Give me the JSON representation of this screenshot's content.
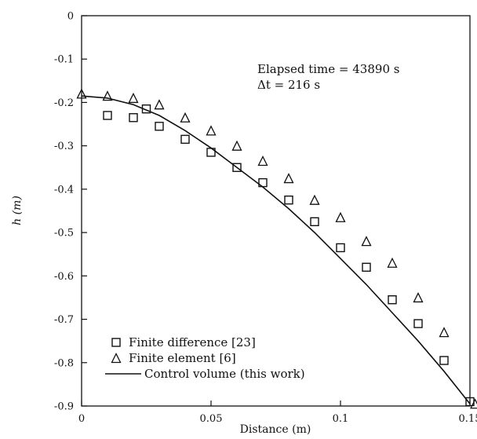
{
  "chart_data": {
    "type": "scatter",
    "xlabel": "Distance (m)",
    "ylabel": "h (m)",
    "xlim": [
      0,
      0.15
    ],
    "ylim": [
      -0.9,
      0
    ],
    "x_ticks": [
      0,
      0.05,
      0.1,
      0.15
    ],
    "x_tick_labels": [
      "0",
      "0.05",
      "0.1",
      "0.15"
    ],
    "y_ticks": [
      0,
      -0.1,
      -0.2,
      -0.3,
      -0.4,
      -0.5,
      -0.6,
      -0.7,
      -0.8,
      -0.9
    ],
    "y_tick_labels": [
      "0",
      "-0.1",
      "-0.2",
      "-0.3",
      "-0.4",
      "-0.5",
      "-0.6",
      "-0.7",
      "-0.8",
      "-0.9"
    ],
    "annotations": [
      "Elapsed time = 43890 s",
      "Δt = 216 s"
    ],
    "legend_position": "bottom-left",
    "grid": false,
    "series": [
      {
        "name": "Finite difference [23]",
        "marker": "square",
        "x": [
          0.01,
          0.02,
          0.025,
          0.03,
          0.04,
          0.05,
          0.06,
          0.07,
          0.08,
          0.09,
          0.1,
          0.11,
          0.12,
          0.13,
          0.14,
          0.15
        ],
        "y": [
          -0.23,
          -0.235,
          -0.215,
          -0.255,
          -0.285,
          -0.315,
          -0.35,
          -0.385,
          -0.425,
          -0.475,
          -0.535,
          -0.58,
          -0.655,
          -0.71,
          -0.795,
          -0.89
        ]
      },
      {
        "name": "Finite element [6]",
        "marker": "triangle",
        "x": [
          0,
          0.01,
          0.02,
          0.03,
          0.04,
          0.05,
          0.06,
          0.07,
          0.08,
          0.09,
          0.1,
          0.11,
          0.12,
          0.13,
          0.14,
          0.152
        ],
        "y": [
          -0.18,
          -0.185,
          -0.19,
          -0.205,
          -0.235,
          -0.265,
          -0.3,
          -0.335,
          -0.375,
          -0.425,
          -0.465,
          -0.52,
          -0.57,
          -0.65,
          -0.73,
          -0.895
        ]
      },
      {
        "name": "Control volume (this work)",
        "marker": "line",
        "x": [
          0,
          0.01,
          0.02,
          0.03,
          0.04,
          0.05,
          0.06,
          0.07,
          0.08,
          0.09,
          0.1,
          0.11,
          0.12,
          0.13,
          0.14,
          0.15
        ],
        "y": [
          -0.185,
          -0.19,
          -0.205,
          -0.23,
          -0.265,
          -0.305,
          -0.35,
          -0.395,
          -0.445,
          -0.5,
          -0.56,
          -0.62,
          -0.685,
          -0.75,
          -0.82,
          -0.895
        ]
      }
    ]
  }
}
